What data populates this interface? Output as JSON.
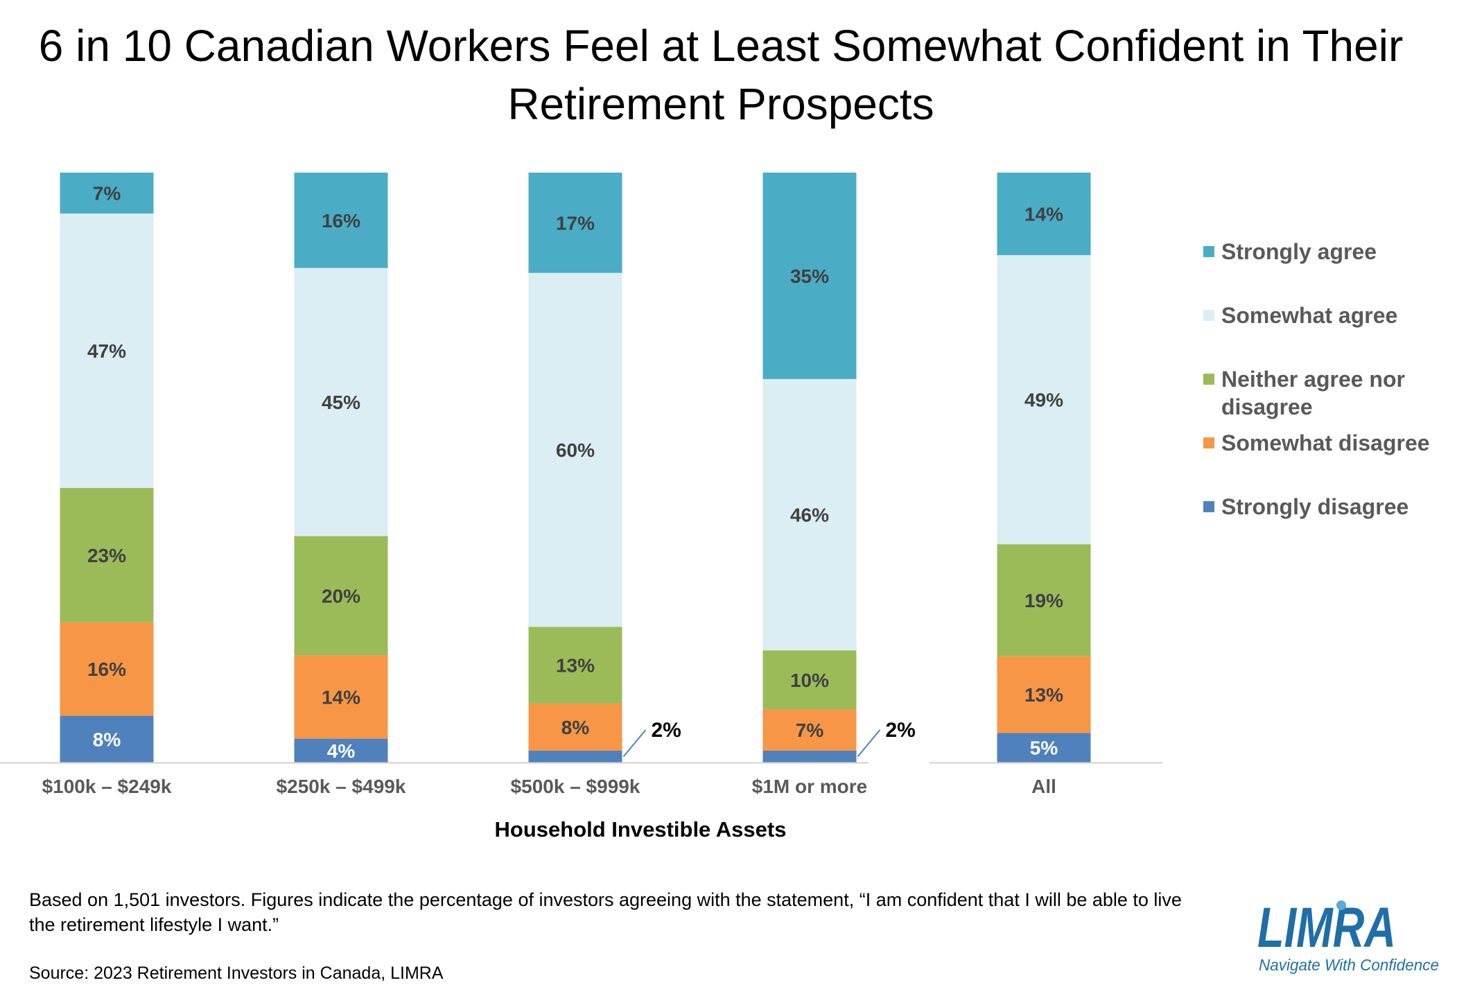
{
  "title": "6 in 10 Canadian Workers Feel at Least Somewhat Confident in Their Retirement Prospects",
  "note": "Based on 1,501 investors. Figures indicate the percentage of investors agreeing with the statement, “I am confident that I will be able to live the retirement lifestyle I want.”",
  "source": "Source: 2023 Retirement Investors in Canada, LIMRA",
  "logo": {
    "wordmark": "LIMRA",
    "tagline": "Navigate With Confidence",
    "color": "#1e6fa8"
  },
  "chart_data": {
    "type": "bar",
    "stacked": true,
    "title": "6 in 10 Canadian Workers Feel at Least Somewhat Confident in Their Retirement Prospects",
    "xlabel": "Household Investible Assets",
    "ylabel": "",
    "ylim": [
      0,
      100
    ],
    "grid": false,
    "legend_position": "right",
    "categories": [
      "$100k – $249k",
      "$250k – $499k",
      "$500k – $999k",
      "$1M or more",
      "All"
    ],
    "series": [
      {
        "name": "Strongly disagree",
        "color": "#4f81bd",
        "values": [
          8,
          4,
          2,
          2,
          5
        ],
        "labels": [
          "8%",
          "4%",
          "2%",
          "2%",
          "5%"
        ]
      },
      {
        "name": "Somewhat disagree",
        "color": "#f79646",
        "values": [
          16,
          14,
          8,
          7,
          13
        ],
        "labels": [
          "16%",
          "14%",
          "8%",
          "7%",
          "13%"
        ]
      },
      {
        "name": "Neither agree nor disagree",
        "color": "#9bbb59",
        "values": [
          23,
          20,
          13,
          10,
          19
        ],
        "labels": [
          "23%",
          "20%",
          "13%",
          "10%",
          "19%"
        ]
      },
      {
        "name": "Somewhat agree",
        "color": "#daeef3",
        "values": [
          47,
          45,
          60,
          46,
          49
        ],
        "labels": [
          "47%",
          "45%",
          "60%",
          "46%",
          "49%"
        ]
      },
      {
        "name": "Strongly agree",
        "color": "#4bacc6",
        "values": [
          7,
          16,
          17,
          35,
          14
        ],
        "labels": [
          "7%",
          "16%",
          "17%",
          "35%",
          "14%"
        ]
      }
    ],
    "legend_order": [
      "Strongly agree",
      "Somewhat agree",
      "Neither agree nor disagree",
      "Somewhat disagree",
      "Strongly disagree"
    ]
  }
}
